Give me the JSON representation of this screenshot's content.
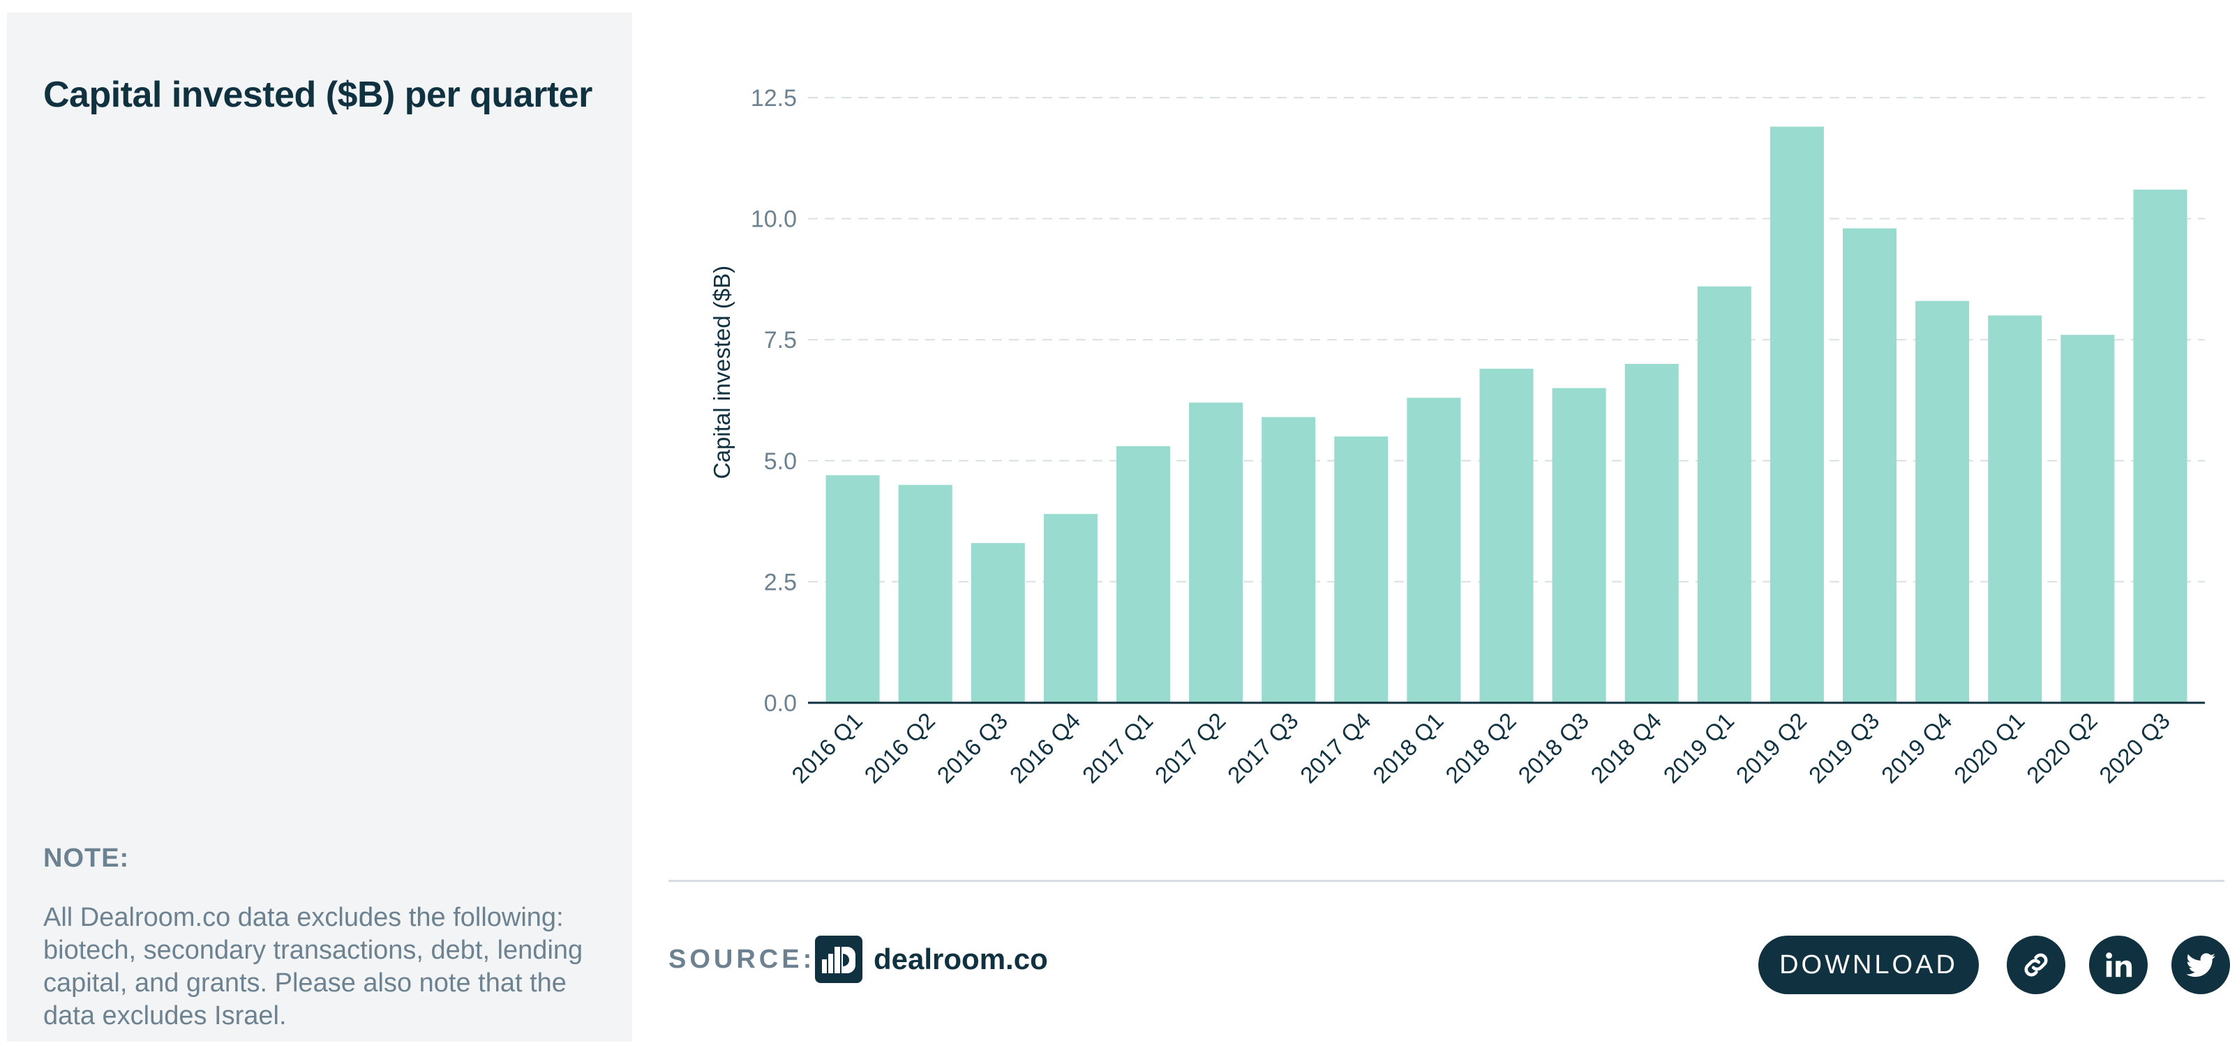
{
  "panel": {
    "title": "Capital invested ($B) per quarter",
    "note_heading": "NOTE:",
    "note_text": "All Dealroom.co data excludes the following: biotech, secondary transactions, debt, lending capital, and grants. Please also note that the data excludes Israel."
  },
  "footer": {
    "source_label": "SOURCE:",
    "brand_name": "dealroom.co",
    "download_label": "DOWNLOAD"
  },
  "icons": {
    "link": "link-icon",
    "linkedin": "linkedin-icon",
    "twitter": "twitter-icon"
  },
  "colors": {
    "bar": "#9adbd0",
    "axis": "#0f3140",
    "grid": "#d9dfe2",
    "tick_text": "#6d8290",
    "dark": "#0f3140"
  },
  "chart_data": {
    "type": "bar",
    "categories": [
      "2016 Q1",
      "2016 Q2",
      "2016 Q3",
      "2016 Q4",
      "2017 Q1",
      "2017 Q2",
      "2017 Q3",
      "2017 Q4",
      "2018 Q1",
      "2018 Q2",
      "2018 Q3",
      "2018 Q4",
      "2019 Q1",
      "2019 Q2",
      "2019 Q3",
      "2019 Q4",
      "2020 Q1",
      "2020 Q2",
      "2020 Q3"
    ],
    "values": [
      4.7,
      4.5,
      3.3,
      3.9,
      5.3,
      6.2,
      5.9,
      5.5,
      6.3,
      6.9,
      6.5,
      7.0,
      8.6,
      11.9,
      9.8,
      8.3,
      8.0,
      7.6,
      10.6
    ],
    "ylabel": "Capital invested ($B)",
    "xlabel": "",
    "ylim": [
      0,
      12.5
    ],
    "yticks": [
      0.0,
      2.5,
      5.0,
      7.5,
      10.0,
      12.5
    ],
    "ytick_labels": [
      "0.0",
      "2.5",
      "5.0",
      "7.5",
      "10.0",
      "12.5"
    ],
    "grid": "horizontal dashed",
    "legend": "none"
  }
}
